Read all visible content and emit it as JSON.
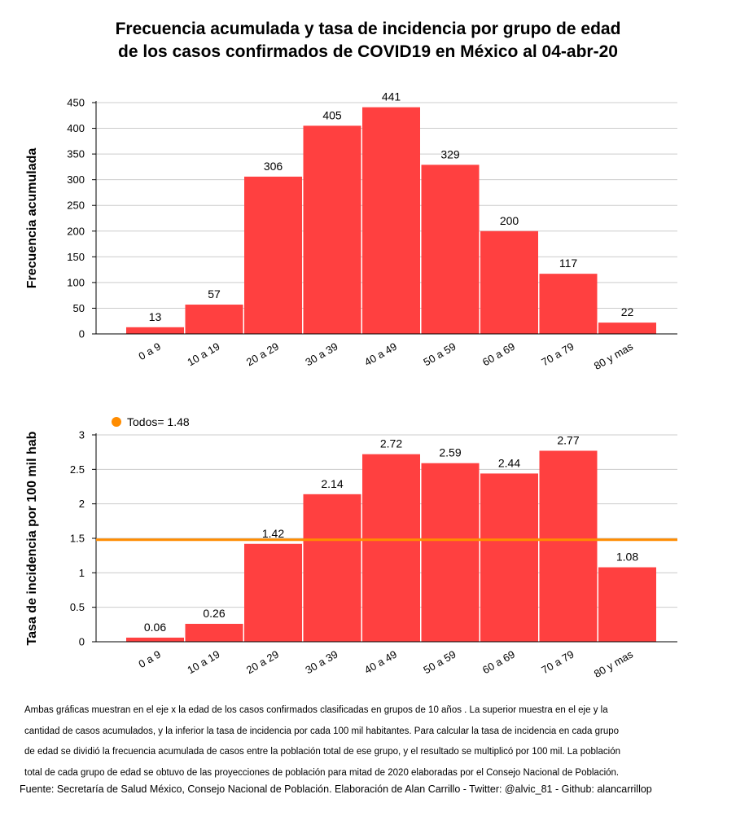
{
  "title_lines": [
    "Frecuencia acumulada y tasa de incidencia por grupo de edad",
    "de los casos confirmados de COVID19 en México al 04-abr-20"
  ],
  "chart_data": [
    {
      "type": "bar",
      "categories": [
        "0 a 9",
        "10 a 19",
        "20 a 29",
        "30 a 39",
        "40 a 49",
        "50 a 59",
        "60 a 69",
        "70 a 79",
        "80 y mas"
      ],
      "values": [
        13,
        57,
        306,
        405,
        441,
        329,
        200,
        117,
        22
      ],
      "value_labels": [
        "13",
        "57",
        "306",
        "405",
        "441",
        "329",
        "200",
        "117",
        "22"
      ],
      "ylabel": "Frecuencia acumulada",
      "ylim": [
        0,
        450
      ],
      "yticks": [
        "0",
        "50",
        "100",
        "150",
        "200",
        "250",
        "300",
        "350",
        "400",
        "450"
      ],
      "ytick_values": [
        0,
        50,
        100,
        150,
        200,
        250,
        300,
        350,
        400,
        450
      ],
      "grid": true,
      "bar_color": "#ff4040"
    },
    {
      "type": "bar",
      "categories": [
        "0 a 9",
        "10 a 19",
        "20 a 29",
        "30 a 39",
        "40 a 49",
        "50 a 59",
        "60 a 69",
        "70 a 79",
        "80 y mas"
      ],
      "values": [
        0.06,
        0.26,
        1.42,
        2.14,
        2.72,
        2.59,
        2.44,
        2.77,
        1.08
      ],
      "value_labels": [
        "0.06",
        "0.26",
        "1.42",
        "2.14",
        "2.72",
        "2.59",
        "2.44",
        "2.77",
        "1.08"
      ],
      "ylabel": "Tasa de incidencia por 100 mil hab",
      "ylim": [
        0,
        3
      ],
      "yticks": [
        "0",
        "0.5",
        "1",
        "1.5",
        "2",
        "2.5",
        "3"
      ],
      "ytick_values": [
        0,
        0.5,
        1,
        1.5,
        2,
        2.5,
        3
      ],
      "grid": true,
      "bar_color": "#ff4040",
      "reference_line": {
        "value": 1.48,
        "label": "Todos= 1.48",
        "color": "#ff8c00"
      },
      "legend_placement": "top-left"
    }
  ],
  "notes_lines": [
    "Ambas gráficas muestran en el eje x la edad de los casos confirmados clasificadas en grupos de 10 años . La superior muestra en el eje y la",
    "cantidad de casos acumulados, y la inferior la tasa de incidencia por cada 100 mil habitantes. Para calcular la tasa de incidencia en cada grupo",
    "de edad se dividió la frecuencia acumulada de casos entre la población total de ese grupo, y el resultado se multiplicó por 100 mil. La población",
    "total de cada grupo de edad se obtuvo de las proyecciones de población para mitad de 2020 elaboradas por el Consejo Nacional de Población."
  ],
  "source": "Fuente: Secretaría de Salud México, Consejo Nacional de Población. Elaboración de Alan Carrillo - Twitter: @alvic_81 - Github: alancarrillop"
}
